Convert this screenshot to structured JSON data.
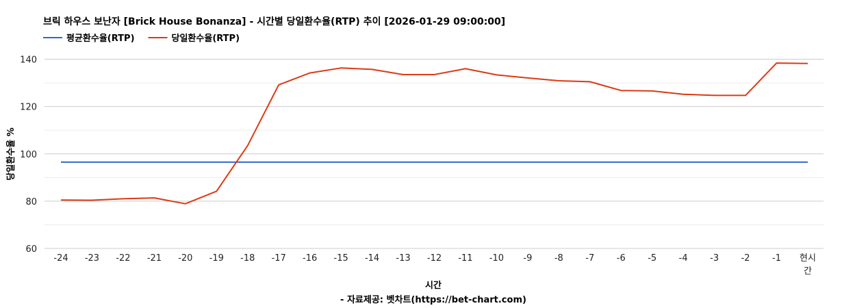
{
  "chart_data": {
    "type": "line",
    "title": "브릭 하우스 보난자 [Brick House Bonanza] - 시간별 당일환수율(RTP) 추이 [2026-01-29 09:00:00]",
    "xlabel": "시간",
    "ylabel": "당일환수율 %",
    "source": "- 자료제공: 벳차트(https://bet-chart.com)",
    "categories": [
      "-24",
      "-23",
      "-22",
      "-21",
      "-20",
      "-19",
      "-18",
      "-17",
      "-16",
      "-15",
      "-14",
      "-13",
      "-12",
      "-11",
      "-10",
      "-9",
      "-8",
      "-7",
      "-6",
      "-5",
      "-4",
      "-3",
      "-2",
      "-1",
      "현시간"
    ],
    "ylim": [
      60,
      150
    ],
    "yticks": [
      60,
      80,
      100,
      120,
      140
    ],
    "grid": true,
    "legend": "top-left",
    "series": [
      {
        "name": "평균환수율(RTP)",
        "color": "#3366cc",
        "values": [
          96.5,
          96.5,
          96.5,
          96.5,
          96.5,
          96.5,
          96.5,
          96.5,
          96.5,
          96.5,
          96.5,
          96.5,
          96.5,
          96.5,
          96.5,
          96.5,
          96.5,
          96.5,
          96.5,
          96.5,
          96.5,
          96.5,
          96.5,
          96.5,
          96.5
        ]
      },
      {
        "name": "당일환수율(RTP)",
        "color": "#dc3912",
        "values": [
          80.5,
          80.4,
          81.0,
          81.4,
          78.9,
          84.2,
          103.5,
          129.2,
          134.2,
          136.3,
          135.7,
          133.5,
          133.5,
          136.0,
          133.4,
          132.1,
          130.9,
          130.5,
          126.8,
          126.6,
          125.2,
          124.7,
          124.7,
          138.4,
          138.2
        ]
      }
    ]
  }
}
